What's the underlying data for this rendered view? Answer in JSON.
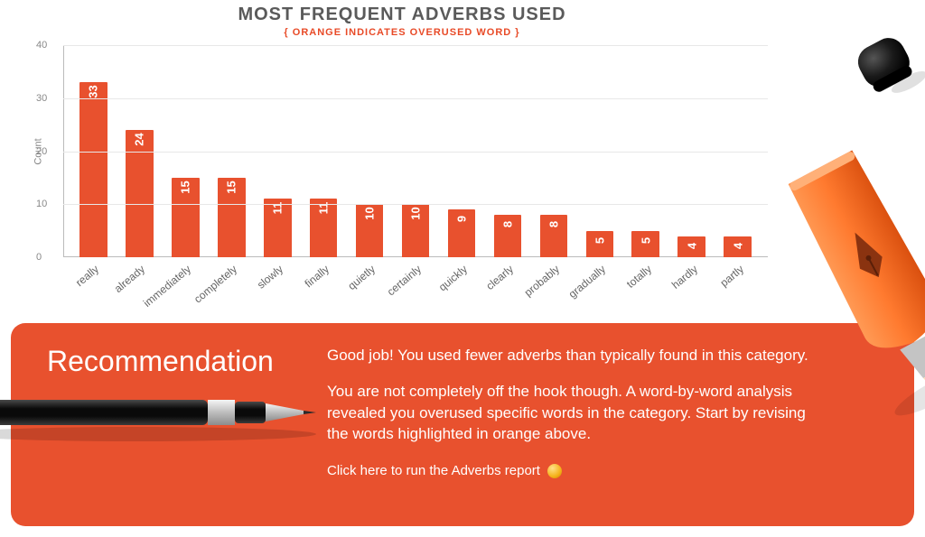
{
  "chart": {
    "type": "bar",
    "title": "MOST FREQUENT ADVERBS USED",
    "subtitle": "{ ORANGE INDICATES OVERUSED WORD }",
    "subtitle_color": "#e84a27",
    "title_color": "#5a5a5a",
    "title_fontsize": 20,
    "subtitle_fontsize": 11,
    "ylabel": "Count",
    "ylim": [
      0,
      40
    ],
    "ytick_step": 10,
    "grid_color": "#e8e8e8",
    "axis_color": "#bbbbbb",
    "background_color": "#ffffff",
    "bar_color": "#e8512e",
    "bar_width": 0.6,
    "value_label_color": "#ffffff",
    "value_label_fontsize": 13,
    "xlabel_fontsize": 12,
    "xlabel_rotation_deg": -40,
    "categories": [
      "really",
      "already",
      "immediately",
      "completely",
      "slowly",
      "finally",
      "quietly",
      "certainly",
      "quickly",
      "clearly",
      "probably",
      "gradually",
      "totally",
      "hardly",
      "partly"
    ],
    "values": [
      33,
      24,
      15,
      15,
      11,
      11,
      10,
      10,
      9,
      8,
      8,
      5,
      5,
      4,
      4
    ]
  },
  "recommendation": {
    "heading": "Recommendation",
    "panel_color": "#e8512e",
    "text_color": "#ffffff",
    "paragraph1": "Good job! You used fewer adverbs than typically found in this category.",
    "paragraph2": "You are not completely off the hook though. A word-by-word analysis revealed you overused specific words in the category. Start by revising the words highlighted in orange above.",
    "link_text": "Click here to run the Adverbs report"
  },
  "decor": {
    "highlighter_body": "#ff7a2f",
    "highlighter_tip": "#ffc389",
    "cap_color": "#1a1a1a",
    "pen_body": "#0c0c0c",
    "pen_silver": "#cfcfcf"
  }
}
